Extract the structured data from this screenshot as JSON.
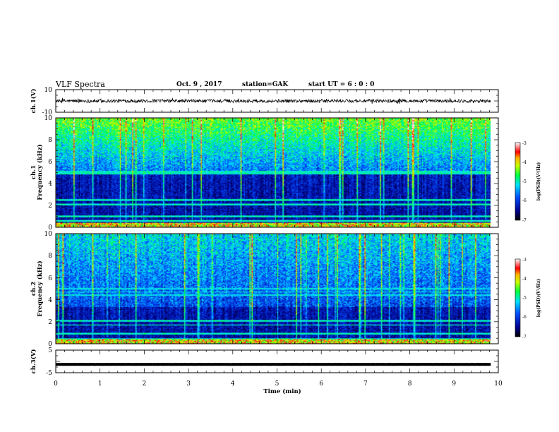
{
  "header": {
    "title": "VLF Spectra",
    "date": "Oct. 9 , 2017",
    "station": "station=GAK",
    "start_ut": "start UT =  6 : 0  : 0"
  },
  "chart_data": [
    {
      "type": "line",
      "name": "ch1-waveform",
      "ylabel": "ch.1(V)",
      "ylim": [
        -10,
        10
      ],
      "y_ticks": [
        "10",
        "-10"
      ],
      "xlim": [
        0,
        10
      ],
      "data_x_range": [
        0,
        9.83
      ],
      "baseline": 0,
      "amplitude": 1.5,
      "line_color": "#000000"
    },
    {
      "type": "heatmap",
      "name": "ch1-spectrogram",
      "ylabel": "ch.1\nFrequency (kHz)",
      "ylim": [
        0,
        10
      ],
      "y_ticks": [
        "0",
        "2",
        "4",
        "6",
        "8",
        "10"
      ],
      "xlim": [
        0,
        10
      ],
      "data_x_range": [
        0,
        9.83
      ],
      "background_cutoff_khz": 4.8,
      "horizontal_lines_khz": [
        0.6,
        1.0,
        2.1,
        2.5,
        4.9,
        5.1
      ],
      "colorbar": {
        "label": "log(PSD)(V²/Hz)",
        "range": [
          -7,
          -3
        ],
        "ticks": [
          "-3",
          "-4",
          "-5",
          "-6",
          "-7"
        ]
      }
    },
    {
      "type": "heatmap",
      "name": "ch2-spectrogram",
      "ylabel": "ch.2\nFrequency (kHz)",
      "ylim": [
        0,
        10
      ],
      "y_ticks": [
        "0",
        "2",
        "4",
        "6",
        "8",
        "10"
      ],
      "xlim": [
        0,
        10
      ],
      "data_x_range": [
        0,
        9.83
      ],
      "background_cutoff_khz": 3.3,
      "horizontal_lines_khz": [
        0.4,
        0.9,
        1.7,
        2.1,
        4.4,
        4.7,
        5.0
      ],
      "colorbar": {
        "label": "log(PSD)(V²/Hz)",
        "range": [
          -7,
          -3
        ],
        "ticks": [
          "-3",
          "-4",
          "-5",
          "-6",
          "-7"
        ]
      }
    },
    {
      "type": "line",
      "name": "ch3-waveform",
      "ylabel": "ch.3(V)",
      "ylim": [
        -5,
        5
      ],
      "y_ticks": [
        "5",
        "-5"
      ],
      "xlim": [
        0,
        10
      ],
      "data_x_range": [
        0,
        9.83
      ],
      "baseline": -1.3,
      "amplitude": 0.2,
      "line_color": "#000000"
    }
  ],
  "x_axis": {
    "label": "Time (min)",
    "ticks": [
      "0",
      "1",
      "2",
      "3",
      "4",
      "5",
      "6",
      "7",
      "8",
      "9",
      "10"
    ]
  }
}
